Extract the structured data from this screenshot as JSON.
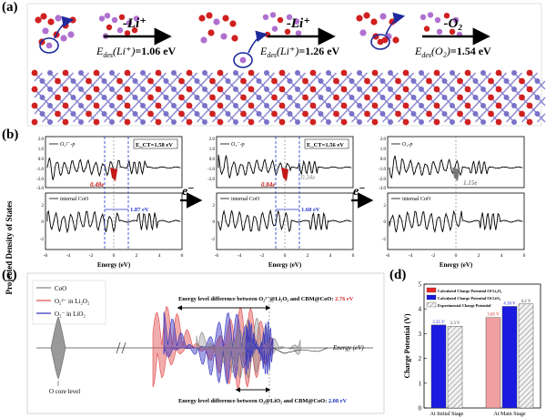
{
  "panel_a": {
    "letter": "(a)",
    "steps": [
      {
        "arrow": "-Li⁺",
        "energy_sym": "E",
        "energy_sub": "des",
        "species": "(Li⁺)",
        "value": "=1.06 eV"
      },
      {
        "arrow": "-Li⁺",
        "energy_sym": "E",
        "energy_sub": "des",
        "species": "(Li⁺)",
        "value": "=1.26 eV"
      },
      {
        "arrow": "-O₂",
        "energy_sym": "E",
        "energy_sub": "des",
        "species": "(O₂)",
        "value": "=1.54 eV"
      }
    ],
    "colors": {
      "oxygen": "#d02020",
      "lithium": "#b070d0",
      "cobalt": "#7a72c8",
      "highlight": "#1f2a9a"
    }
  },
  "panel_b": {
    "letter": "(b)",
    "ylabel": "Projected Density of States",
    "xlabel": "Energy (eV)",
    "arrow_label": "e⁻",
    "panels": [
      {
        "top_legend": "O₂²⁻-p",
        "ect_label": "E_CT=1.58 eV",
        "charge": "0.48e",
        "gap": "1.87 eV",
        "bottom_legend": "internal CoO",
        "top_yticks": [
          "2.0",
          "1.0",
          "0.0",
          "-1.0",
          "-2.0",
          "-3.0"
        ],
        "bottom_yticks": [
          "2",
          "0",
          "-2"
        ],
        "xticks": [
          "-6",
          "-4",
          "-2",
          "0",
          "2",
          "4",
          "6"
        ]
      },
      {
        "top_legend": "O₂⁻-p",
        "ect_label": "E_CT=1.56 eV",
        "charge": "0.84e",
        "charge2": "0.34e",
        "gap": "1.60 eV",
        "bottom_legend": "internal CoO",
        "top_yticks": [
          "2.0",
          "1.0",
          "0.0",
          "-1.0",
          "-2.0"
        ],
        "bottom_yticks": [
          "2",
          "0",
          "-2"
        ],
        "xticks": [
          "-6",
          "-4",
          "-2",
          "0",
          "2",
          "4",
          "6"
        ]
      },
      {
        "top_legend": "O₂-p",
        "charge": "1.15e",
        "bottom_legend": "internal CoO",
        "top_yticks": [
          "2.0",
          "1.0",
          "0.0",
          "-1.0",
          "-2.0",
          "-3.0"
        ],
        "bottom_yticks": [
          "2",
          "0",
          "-2"
        ],
        "xticks": [
          "-6",
          "-4",
          "-2",
          "0",
          "2",
          "4",
          "6"
        ]
      }
    ]
  },
  "panel_c": {
    "letter": "(c)",
    "legend": [
      {
        "label": "CoO",
        "color": "#808080"
      },
      {
        "label": "O₂²⁻ in Li₂O₂",
        "color": "#e04848"
      },
      {
        "label": "O₂⁻ in LiO₂",
        "color": "#3030c0"
      }
    ],
    "top_annotation_prefix": "Energy level difference between O₂²⁻@Li₂O₂ and CBM@CoO: ",
    "top_annotation_value": "2.76 eV",
    "bottom_annotation_prefix": "Energy level difference between O₂@LiO₂ and CBM@CoO: ",
    "bottom_annotation_value": "2.08 eV",
    "core_label": "O core level",
    "axis_label": "Energy (eV)"
  },
  "panel_d": {
    "letter": "(d)",
    "ylabel": "Charge Potential (V)",
    "legend": [
      "Calculated Charge Potential Of Li₂O₂",
      "Calculated Charge Potential Of LiO₂",
      "Experimental Charge Potential"
    ],
    "groups": [
      "At Initial Stage",
      "At Main Stage"
    ],
    "yticks": [
      "0",
      "1",
      "2",
      "3",
      "4",
      "5"
    ],
    "chart_data": {
      "type": "bar",
      "categories": [
        "At Initial Stage",
        "At Main Stage"
      ],
      "series": [
        {
          "name": "Calculated Charge Potential Of Li₂O₂",
          "values": [
            null,
            3.65
          ],
          "color": "#e82828"
        },
        {
          "name": "Calculated Charge Potential Of LiO₂",
          "values": [
            3.35,
            4.1
          ],
          "color": "#1a1ae0"
        },
        {
          "name": "Experimental Charge Potential",
          "values": [
            3.3,
            4.2
          ],
          "color": "#e0e0e0"
        }
      ],
      "value_labels": [
        [
          "",
          "3.35 V",
          "3.3 V"
        ],
        [
          "3.65 V",
          "4.10 V",
          "4.2 V"
        ]
      ],
      "ylim": [
        0,
        5
      ],
      "ylabel": "Charge Potential (V)"
    }
  }
}
